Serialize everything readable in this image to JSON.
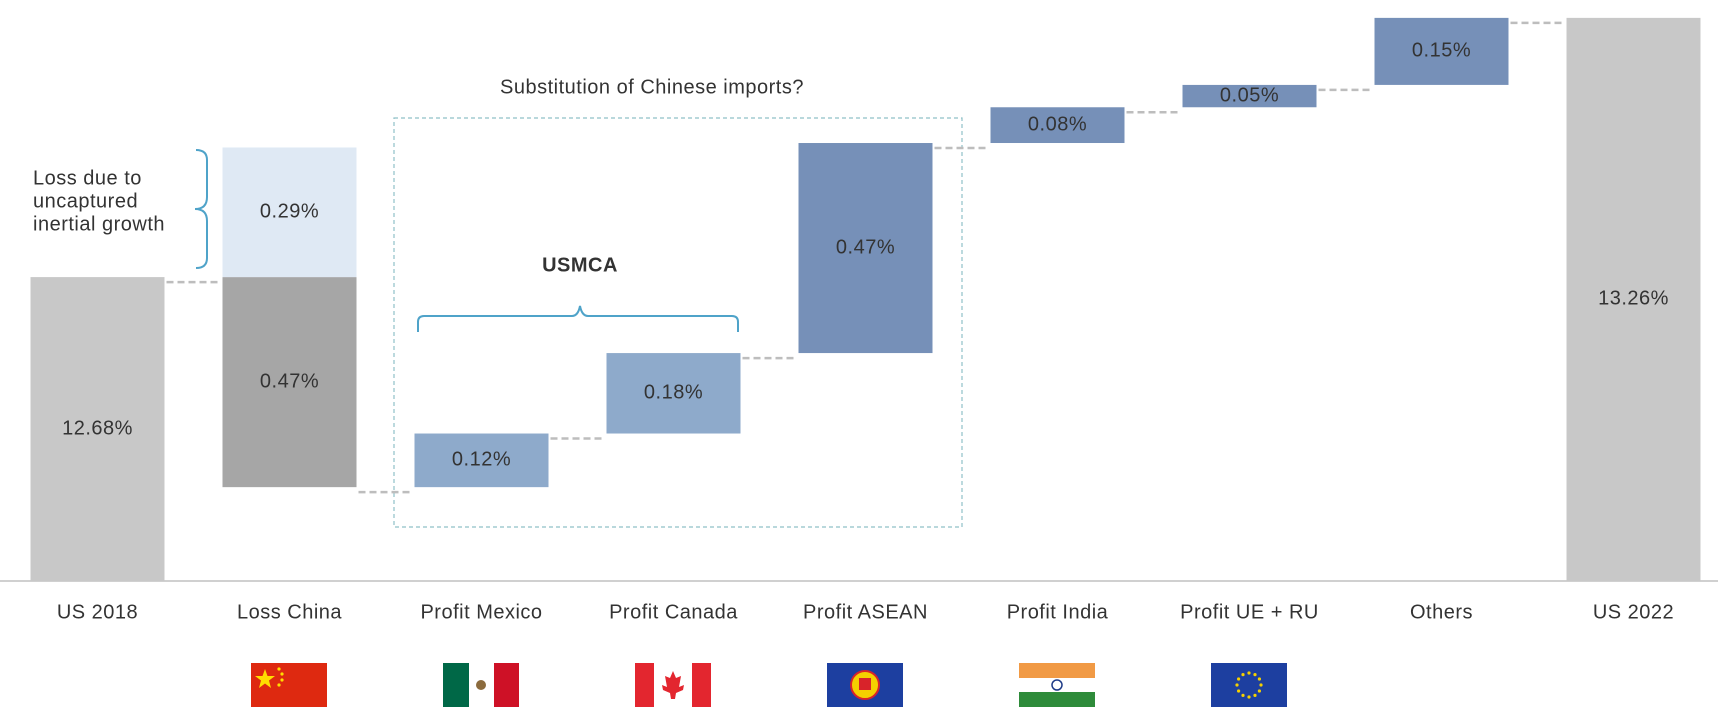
{
  "chart_data": {
    "type": "waterfall",
    "categories": [
      "US 2018",
      "Loss China",
      "Profit Mexico",
      "Profit Canada",
      "Profit ASEAN",
      "Profit India",
      "Profit UE + RU",
      "Others",
      "US 2022"
    ],
    "values": [
      12.68,
      0.47,
      0.12,
      0.18,
      0.47,
      0.08,
      0.05,
      0.15,
      13.26
    ],
    "value_labels": [
      "12.68%",
      "0.47%",
      "0.12%",
      "0.18%",
      "0.47%",
      "0.08%",
      "0.05%",
      "0.15%",
      "13.26%"
    ],
    "measure": [
      "total",
      "decrease",
      "increase",
      "increase",
      "increase",
      "increase",
      "increase",
      "increase",
      "total"
    ],
    "colors": [
      "#c8c8c8",
      "#a6a6a6",
      "#8eaacb",
      "#8eaacb",
      "#7690b8",
      "#7690b8",
      "#7690b8",
      "#7690b8",
      "#c8c8c8"
    ],
    "annotation_bar": {
      "category": "Loss China",
      "value": 0.29,
      "value_label": "0.29%",
      "color": "#dfe9f4",
      "lines": [
        "Loss due to",
        "uncaptured",
        "inertial growth"
      ]
    },
    "group_box_label": "Substitution of Chinese imports?",
    "brace_label": "USMCA",
    "ylim": [
      12,
      13.3
    ]
  }
}
